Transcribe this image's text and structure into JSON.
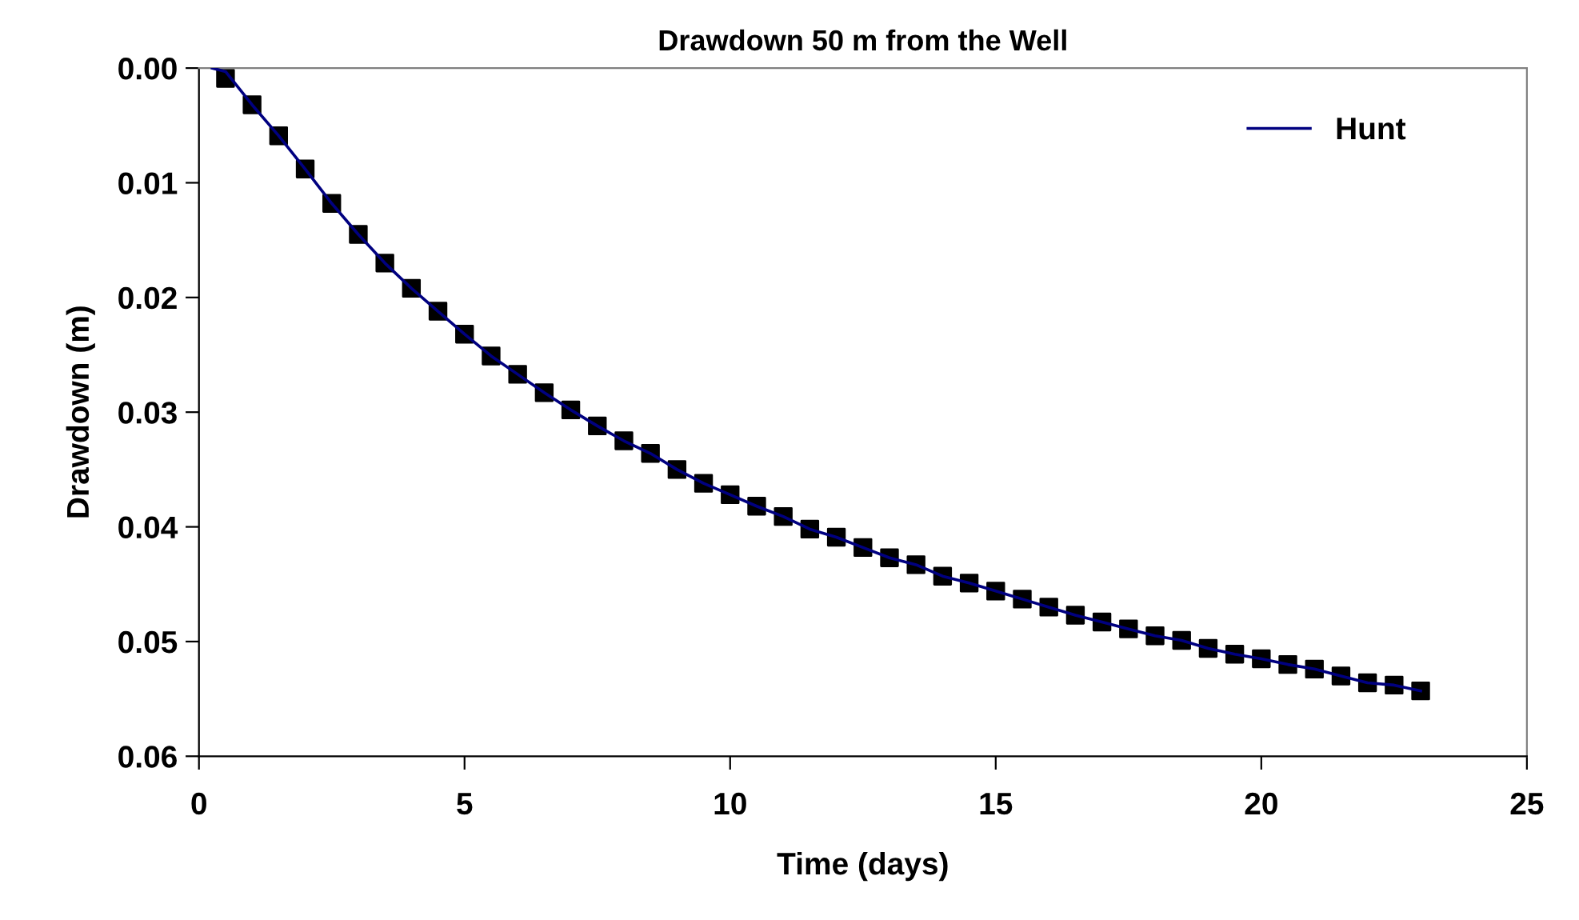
{
  "chart_data": {
    "type": "line",
    "title": "Drawdown 50 m from the Well",
    "xlabel": "Time (days)",
    "ylabel": "Drawdown (m)",
    "xlim": [
      0,
      25
    ],
    "xticks": [
      0,
      5,
      10,
      15,
      20,
      25
    ],
    "ylim": [
      0.06,
      0
    ],
    "yticks": [
      {
        "value": 0,
        "label": "0.00"
      },
      {
        "value": 0.01,
        "label": "0.01"
      },
      {
        "value": 0.02,
        "label": "0.02"
      },
      {
        "value": 0.03,
        "label": "0.03"
      },
      {
        "value": 0.04,
        "label": "0.04"
      },
      {
        "value": 0.05,
        "label": "0.05"
      },
      {
        "value": 0.06,
        "label": "0.06"
      }
    ],
    "grid": false,
    "legend": "top right",
    "series": [
      {
        "name": "Hunt",
        "color": "#000080",
        "marker": "none",
        "line_style": "solid",
        "x": [
          0.25,
          0.5,
          1.0,
          1.5,
          2.0,
          2.5,
          3.0,
          3.5,
          4.0,
          4.5,
          5.0,
          5.5,
          6.0,
          6.5,
          7.0,
          7.5,
          8.0,
          8.5,
          9.0,
          9.5,
          10.0,
          10.5,
          11.0,
          11.5,
          12.0,
          12.5,
          13.0,
          13.5,
          14.0,
          14.5,
          15.0,
          15.5,
          16.0,
          16.5,
          17.0,
          17.5,
          18.0,
          18.5,
          19.0,
          19.5,
          20.0,
          20.5,
          21.0,
          21.5,
          22.0,
          22.5,
          23.0
        ],
        "values": [
          0,
          0.0003,
          0.0032,
          0.0059,
          0.0088,
          0.0118,
          0.0145,
          0.017,
          0.0192,
          0.0212,
          0.0232,
          0.0251,
          0.0267,
          0.0283,
          0.0298,
          0.0312,
          0.0325,
          0.0336,
          0.035,
          0.0362,
          0.0372,
          0.0382,
          0.0391,
          0.0402,
          0.0409,
          0.0418,
          0.0427,
          0.0433,
          0.0443,
          0.0449,
          0.0456,
          0.0463,
          0.047,
          0.0477,
          0.0483,
          0.0489,
          0.0495,
          0.0499,
          0.0506,
          0.0511,
          0.0515,
          0.052,
          0.0524,
          0.053,
          0.0536,
          0.0538,
          0.0543
        ]
      },
      {
        "type": "scatter",
        "color": "#000000",
        "marker": "square",
        "x": [
          0.5,
          1.0,
          1.5,
          2.0,
          2.5,
          3.0,
          3.5,
          4.0,
          4.5,
          5.0,
          5.5,
          6.0,
          6.5,
          7.0,
          7.5,
          8.0,
          8.5,
          9.0,
          9.5,
          10.0,
          10.5,
          11.0,
          11.5,
          12.0,
          12.5,
          13.0,
          13.5,
          14.0,
          14.5,
          15.0,
          15.5,
          16.0,
          16.5,
          17.0,
          17.5,
          18.0,
          18.5,
          19.0,
          19.5,
          20.0,
          20.5,
          21.0,
          21.5,
          22.0,
          22.5,
          23.0
        ],
        "values": [
          0.0009,
          0.0032,
          0.0059,
          0.0088,
          0.0118,
          0.0145,
          0.017,
          0.0192,
          0.0212,
          0.0232,
          0.0251,
          0.0267,
          0.0283,
          0.0298,
          0.0312,
          0.0325,
          0.0336,
          0.035,
          0.0362,
          0.0372,
          0.0382,
          0.0391,
          0.0402,
          0.0409,
          0.0418,
          0.0427,
          0.0433,
          0.0443,
          0.0449,
          0.0456,
          0.0463,
          0.047,
          0.0477,
          0.0483,
          0.0489,
          0.0495,
          0.0499,
          0.0506,
          0.0511,
          0.0515,
          0.052,
          0.0524,
          0.053,
          0.0536,
          0.0538,
          0.0543
        ]
      }
    ]
  }
}
